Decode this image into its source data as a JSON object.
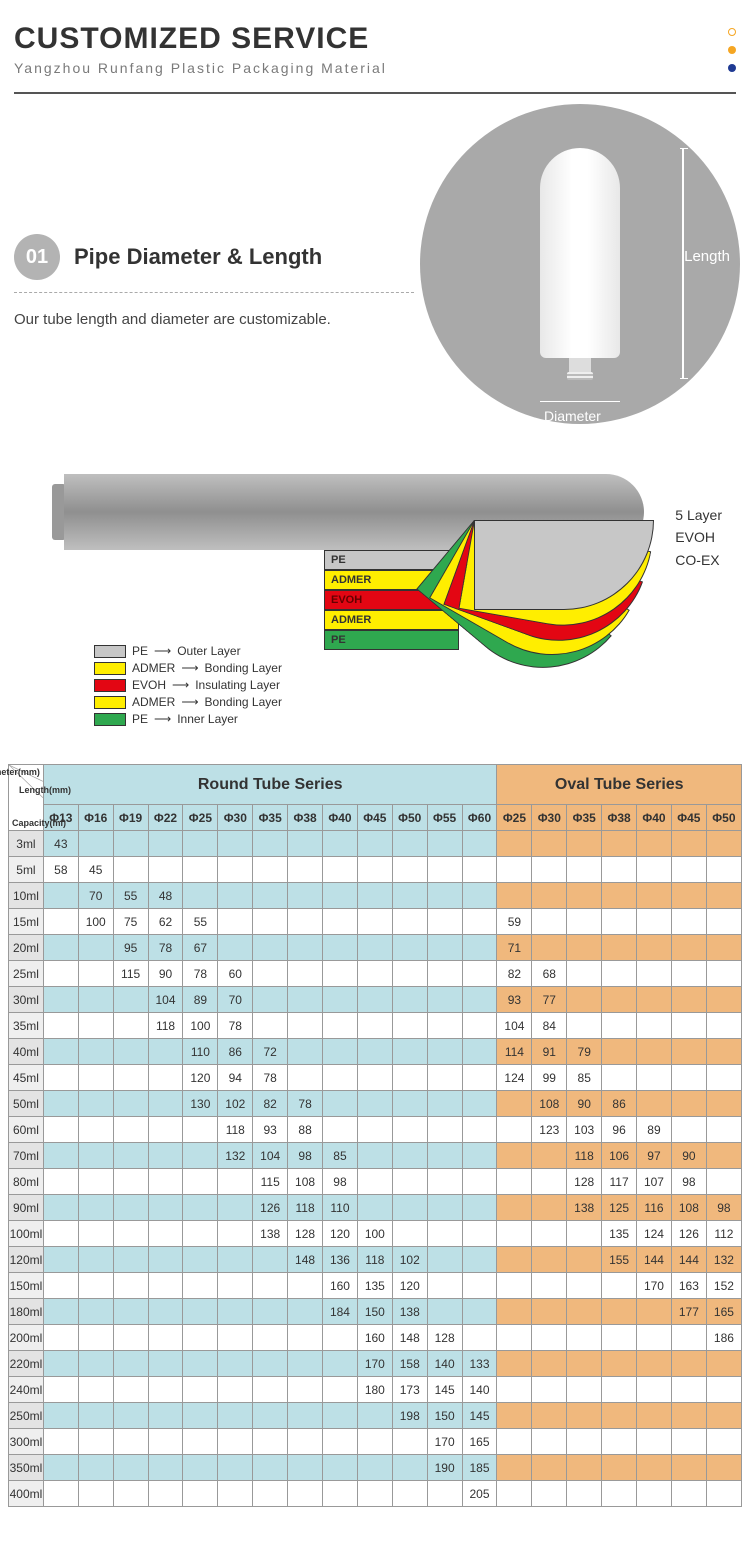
{
  "header": {
    "title": "CUSTOMIZED SERVICE",
    "subtitle": "Yangzhou Runfang Plastic Packaging Material",
    "dot_colors": [
      "#ffffff",
      "#f5a623",
      "#1f3a93"
    ],
    "dot_border": "#f5a623"
  },
  "section1": {
    "badge": "01",
    "heading": "Pipe Diameter & Length",
    "desc": "Our tube length and diameter are customizable.",
    "length_label": "Length",
    "diameter_label": "Diameter"
  },
  "section2": {
    "side_labels": [
      "5 Layer",
      "EVOH",
      "CO-EX"
    ],
    "layer_colors": {
      "pe": "#c7c7c7",
      "admer": "#ffee00",
      "evoh": "#e30613",
      "admer2": "#ffee00",
      "pe_inner": "#2fa84f"
    },
    "peel_labels": [
      "PE",
      "ADMER",
      "EVOH",
      "ADMER",
      "PE"
    ],
    "legend": [
      {
        "swatch": "#c7c7c7",
        "name": "PE",
        "role": "Outer Layer"
      },
      {
        "swatch": "#ffee00",
        "name": "ADMER",
        "role": "Bonding Layer"
      },
      {
        "swatch": "#e30613",
        "name": "EVOH",
        "role": "Insulating Layer"
      },
      {
        "swatch": "#ffee00",
        "name": "ADMER",
        "role": "Bonding Layer"
      },
      {
        "swatch": "#2fa84f",
        "name": "PE",
        "role": "Inner Layer"
      }
    ]
  },
  "table": {
    "corner_labels": [
      "Diameter(mm)",
      "Length(mm)",
      "Capacity(ml)"
    ],
    "round_title": "Round Tube Series",
    "oval_title": "Oval Tube Series",
    "round_cols": [
      "Φ13",
      "Φ16",
      "Φ19",
      "Φ22",
      "Φ25",
      "Φ30",
      "Φ35",
      "Φ38",
      "Φ40",
      "Φ45",
      "Φ50",
      "Φ55",
      "Φ60"
    ],
    "oval_cols": [
      "Φ25",
      "Φ30",
      "Φ35",
      "Φ38",
      "Φ40",
      "Φ45",
      "Φ50"
    ],
    "colors": {
      "round_hdr": "#bde0e6",
      "oval_hdr": "#f0b87d",
      "cap_col": "#efefef",
      "border": "#999999"
    },
    "rows": [
      {
        "cap": "3ml",
        "r": [
          "43",
          "",
          "",
          "",
          "",
          "",
          "",
          "",
          "",
          "",
          "",
          "",
          ""
        ],
        "o": [
          "",
          "",
          "",
          "",
          "",
          "",
          ""
        ]
      },
      {
        "cap": "5ml",
        "r": [
          "58",
          "45",
          "",
          "",
          "",
          "",
          "",
          "",
          "",
          "",
          "",
          "",
          ""
        ],
        "o": [
          "",
          "",
          "",
          "",
          "",
          "",
          ""
        ]
      },
      {
        "cap": "10ml",
        "r": [
          "",
          "70",
          "55",
          "48",
          "",
          "",
          "",
          "",
          "",
          "",
          "",
          "",
          ""
        ],
        "o": [
          "",
          "",
          "",
          "",
          "",
          "",
          ""
        ]
      },
      {
        "cap": "15ml",
        "r": [
          "",
          "100",
          "75",
          "62",
          "55",
          "",
          "",
          "",
          "",
          "",
          "",
          "",
          ""
        ],
        "o": [
          "59",
          "",
          "",
          "",
          "",
          "",
          ""
        ]
      },
      {
        "cap": "20ml",
        "r": [
          "",
          "",
          "95",
          "78",
          "67",
          "",
          "",
          "",
          "",
          "",
          "",
          "",
          ""
        ],
        "o": [
          "71",
          "",
          "",
          "",
          "",
          "",
          ""
        ]
      },
      {
        "cap": "25ml",
        "r": [
          "",
          "",
          "115",
          "90",
          "78",
          "60",
          "",
          "",
          "",
          "",
          "",
          "",
          ""
        ],
        "o": [
          "82",
          "68",
          "",
          "",
          "",
          "",
          ""
        ]
      },
      {
        "cap": "30ml",
        "r": [
          "",
          "",
          "",
          "104",
          "89",
          "70",
          "",
          "",
          "",
          "",
          "",
          "",
          ""
        ],
        "o": [
          "93",
          "77",
          "",
          "",
          "",
          "",
          ""
        ]
      },
      {
        "cap": "35ml",
        "r": [
          "",
          "",
          "",
          "118",
          "100",
          "78",
          "",
          "",
          "",
          "",
          "",
          "",
          ""
        ],
        "o": [
          "104",
          "84",
          "",
          "",
          "",
          "",
          ""
        ]
      },
      {
        "cap": "40ml",
        "r": [
          "",
          "",
          "",
          "",
          "110",
          "86",
          "72",
          "",
          "",
          "",
          "",
          "",
          ""
        ],
        "o": [
          "114",
          "91",
          "79",
          "",
          "",
          "",
          ""
        ]
      },
      {
        "cap": "45ml",
        "r": [
          "",
          "",
          "",
          "",
          "120",
          "94",
          "78",
          "",
          "",
          "",
          "",
          "",
          ""
        ],
        "o": [
          "124",
          "99",
          "85",
          "",
          "",
          "",
          ""
        ]
      },
      {
        "cap": "50ml",
        "r": [
          "",
          "",
          "",
          "",
          "130",
          "102",
          "82",
          "78",
          "",
          "",
          "",
          "",
          ""
        ],
        "o": [
          "",
          "108",
          "90",
          "86",
          "",
          "",
          ""
        ]
      },
      {
        "cap": "60ml",
        "r": [
          "",
          "",
          "",
          "",
          "",
          "118",
          "93",
          "88",
          "",
          "",
          "",
          "",
          ""
        ],
        "o": [
          "",
          "123",
          "103",
          "96",
          "89",
          "",
          ""
        ]
      },
      {
        "cap": "70ml",
        "r": [
          "",
          "",
          "",
          "",
          "",
          "132",
          "104",
          "98",
          "85",
          "",
          "",
          "",
          ""
        ],
        "o": [
          "",
          "",
          "118",
          "106",
          "97",
          "90",
          ""
        ]
      },
      {
        "cap": "80ml",
        "r": [
          "",
          "",
          "",
          "",
          "",
          "",
          "115",
          "108",
          "98",
          "",
          "",
          "",
          ""
        ],
        "o": [
          "",
          "",
          "128",
          "117",
          "107",
          "98",
          ""
        ]
      },
      {
        "cap": "90ml",
        "r": [
          "",
          "",
          "",
          "",
          "",
          "",
          "126",
          "118",
          "110",
          "",
          "",
          "",
          ""
        ],
        "o": [
          "",
          "",
          "138",
          "125",
          "116",
          "108",
          "98"
        ]
      },
      {
        "cap": "100ml",
        "r": [
          "",
          "",
          "",
          "",
          "",
          "",
          "138",
          "128",
          "120",
          "100",
          "",
          "",
          ""
        ],
        "o": [
          "",
          "",
          "",
          "135",
          "124",
          "126",
          "112"
        ]
      },
      {
        "cap": "120ml",
        "r": [
          "",
          "",
          "",
          "",
          "",
          "",
          "",
          "148",
          "136",
          "118",
          "102",
          "",
          ""
        ],
        "o": [
          "",
          "",
          "",
          "155",
          "144",
          "144",
          "132"
        ]
      },
      {
        "cap": "150ml",
        "r": [
          "",
          "",
          "",
          "",
          "",
          "",
          "",
          "",
          "160",
          "135",
          "120",
          "",
          ""
        ],
        "o": [
          "",
          "",
          "",
          "",
          "170",
          "163",
          "152"
        ]
      },
      {
        "cap": "180ml",
        "r": [
          "",
          "",
          "",
          "",
          "",
          "",
          "",
          "",
          "184",
          "150",
          "138",
          "",
          ""
        ],
        "o": [
          "",
          "",
          "",
          "",
          "",
          "177",
          "165"
        ]
      },
      {
        "cap": "200ml",
        "r": [
          "",
          "",
          "",
          "",
          "",
          "",
          "",
          "",
          "",
          "160",
          "148",
          "128",
          ""
        ],
        "o": [
          "",
          "",
          "",
          "",
          "",
          "",
          "186"
        ]
      },
      {
        "cap": "220ml",
        "r": [
          "",
          "",
          "",
          "",
          "",
          "",
          "",
          "",
          "",
          "170",
          "158",
          "140",
          "133"
        ],
        "o": [
          "",
          "",
          "",
          "",
          "",
          "",
          ""
        ]
      },
      {
        "cap": "240ml",
        "r": [
          "",
          "",
          "",
          "",
          "",
          "",
          "",
          "",
          "",
          "180",
          "173",
          "145",
          "140"
        ],
        "o": [
          "",
          "",
          "",
          "",
          "",
          "",
          ""
        ]
      },
      {
        "cap": "250ml",
        "r": [
          "",
          "",
          "",
          "",
          "",
          "",
          "",
          "",
          "",
          "",
          "198",
          "150",
          "145"
        ],
        "o": [
          "",
          "",
          "",
          "",
          "",
          "",
          ""
        ]
      },
      {
        "cap": "300ml",
        "r": [
          "",
          "",
          "",
          "",
          "",
          "",
          "",
          "",
          "",
          "",
          "",
          "170",
          "165"
        ],
        "o": [
          "",
          "",
          "",
          "",
          "",
          "",
          ""
        ]
      },
      {
        "cap": "350ml",
        "r": [
          "",
          "",
          "",
          "",
          "",
          "",
          "",
          "",
          "",
          "",
          "",
          "190",
          "185"
        ],
        "o": [
          "",
          "",
          "",
          "",
          "",
          "",
          ""
        ]
      },
      {
        "cap": "400ml",
        "r": [
          "",
          "",
          "",
          "",
          "",
          "",
          "",
          "",
          "",
          "",
          "",
          "",
          "205"
        ],
        "o": [
          "",
          "",
          "",
          "",
          "",
          "",
          ""
        ]
      }
    ]
  }
}
